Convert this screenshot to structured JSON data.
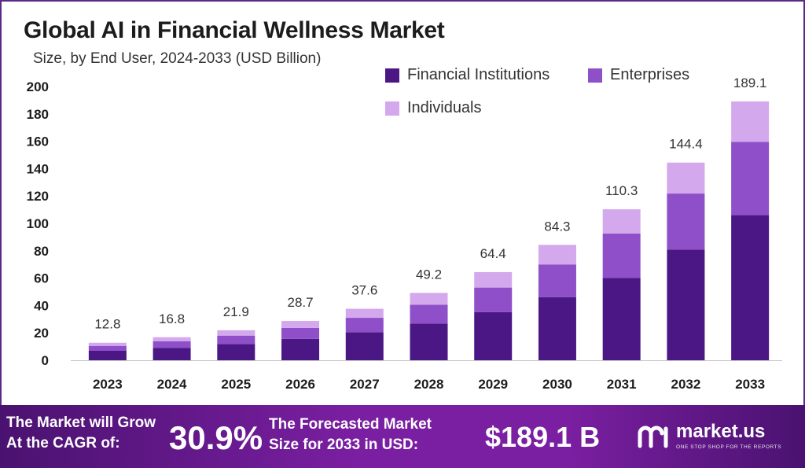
{
  "title": "Global AI in Financial Wellness Market",
  "subtitle": "Size, by End User, 2024-2033 (USD Billion)",
  "colors": {
    "financial_institutions": "#4b1784",
    "enterprises": "#8e4fc9",
    "individuals": "#d4a8ec",
    "footer": "#7b1fa2",
    "frame": "#5b2a86"
  },
  "chart_data": {
    "type": "bar",
    "stacked": true,
    "categories": [
      "2023",
      "2024",
      "2025",
      "2026",
      "2027",
      "2028",
      "2029",
      "2030",
      "2031",
      "2032",
      "2033"
    ],
    "series": [
      {
        "name": "Financial Institutions",
        "values": [
          6.9,
          9.1,
          11.9,
          15.6,
          20.5,
          26.8,
          35.1,
          46.0,
          60.1,
          80.8,
          106.0
        ]
      },
      {
        "name": "Enterprises",
        "values": [
          3.6,
          4.7,
          6.1,
          8.0,
          10.5,
          13.8,
          18.0,
          24.0,
          32.5,
          41.0,
          53.5
        ]
      },
      {
        "name": "Individuals",
        "values": [
          2.3,
          3.0,
          3.9,
          5.1,
          6.6,
          8.6,
          11.3,
          14.3,
          17.7,
          22.6,
          29.6
        ]
      }
    ],
    "totals": [
      "12.8",
      "16.8",
      "21.9",
      "28.7",
      "37.6",
      "49.2",
      "64.4",
      "84.3",
      "110.3",
      "144.4",
      "189.1"
    ],
    "ylim": [
      0,
      200
    ],
    "yticks": [
      "0",
      "20",
      "40",
      "60",
      "80",
      "100",
      "120",
      "140",
      "160",
      "180",
      "200"
    ],
    "grid": false,
    "legend_position": "top-right"
  },
  "footer": {
    "cagr_line1": "The Market will Grow",
    "cagr_line2": "At the CAGR of:",
    "cagr_value": "30.9%",
    "forecast_line1": "The Forecasted Market",
    "forecast_line2": "Size for 2033 in USD:",
    "forecast_value": "$189.1 B",
    "brand_name": "market.us",
    "brand_tagline": "ONE STOP SHOP FOR THE REPORTS"
  }
}
